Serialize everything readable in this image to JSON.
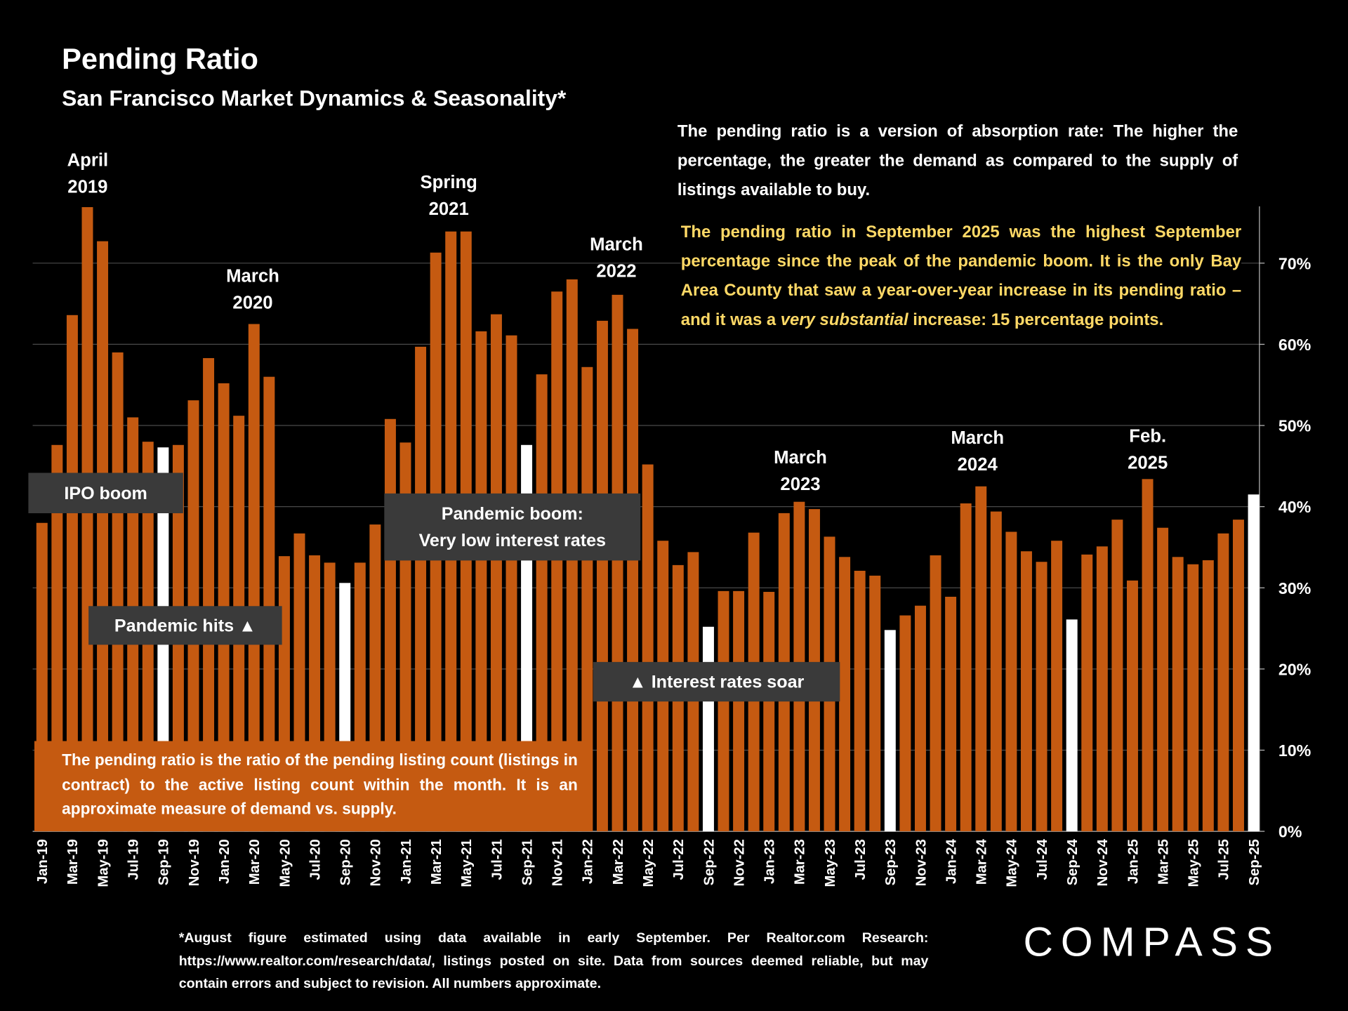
{
  "chart_data": {
    "type": "bar",
    "title": "Pending Ratio",
    "subtitle": "San Francisco Market Dynamics & Seasonality*",
    "categories": [
      "Jan-19",
      null,
      "Mar-19",
      null,
      "May-19",
      null,
      "Jul-19",
      null,
      "Sep-19",
      null,
      "Nov-19",
      null,
      "Jan-20",
      null,
      "Mar-20",
      null,
      "May-20",
      null,
      "Jul-20",
      null,
      "Sep-20",
      null,
      "Nov-20",
      null,
      "Jan-21",
      null,
      "Mar-21",
      null,
      "May-21",
      null,
      "Jul-21",
      null,
      "Sep-21",
      null,
      "Nov-21",
      null,
      "Jan-22",
      null,
      "Mar-22",
      null,
      "May-22",
      null,
      "Jul-22",
      null,
      "Sep-22",
      null,
      "Nov-22",
      null,
      "Jan-23",
      null,
      "Mar-23",
      null,
      "May-23",
      null,
      "Jul-23",
      null,
      "Sep-23",
      null,
      "Nov-23",
      null,
      "Jan-24",
      null,
      "Mar-24",
      null,
      "May-24",
      null,
      "Jul-24",
      null,
      "Sep-24",
      null,
      "Nov-24",
      null,
      "Jan-25",
      null,
      "Mar-25",
      null,
      "May-25",
      null,
      "Jul-25",
      null,
      "Sep-25"
    ],
    "values": [
      38.0,
      47.6,
      63.6,
      76.9,
      72.7,
      59.0,
      51.0,
      48.0,
      47.3,
      47.6,
      53.1,
      58.3,
      55.2,
      51.2,
      62.5,
      56.0,
      33.9,
      36.7,
      34.0,
      33.1,
      30.6,
      33.1,
      37.8,
      50.8,
      47.9,
      59.7,
      71.3,
      73.9,
      73.9,
      61.6,
      63.7,
      61.1,
      47.6,
      56.3,
      66.5,
      68.0,
      57.2,
      62.9,
      66.1,
      61.9,
      45.2,
      35.8,
      32.8,
      34.4,
      25.2,
      29.6,
      29.6,
      36.8,
      29.5,
      39.2,
      40.6,
      39.7,
      36.3,
      33.8,
      32.1,
      31.5,
      24.8,
      26.6,
      27.8,
      34.0,
      28.9,
      40.4,
      42.5,
      39.4,
      36.9,
      34.5,
      33.2,
      35.8,
      26.1,
      34.1,
      35.1,
      38.4,
      30.9,
      43.4,
      37.4,
      33.8,
      32.9,
      33.4,
      36.7,
      38.4,
      41.5
    ],
    "colors": [
      "#c55a11",
      "#c55a11",
      "#c55a11",
      "#c55a11",
      "#c55a11",
      "#c55a11",
      "#c55a11",
      "#c55a11",
      "#ffffff",
      "#c55a11",
      "#c55a11",
      "#c55a11",
      "#c55a11",
      "#c55a11",
      "#c55a11",
      "#c55a11",
      "#c55a11",
      "#c55a11",
      "#c55a11",
      "#c55a11",
      "#ffffff",
      "#c55a11",
      "#c55a11",
      "#c55a11",
      "#c55a11",
      "#c55a11",
      "#c55a11",
      "#c55a11",
      "#c55a11",
      "#c55a11",
      "#c55a11",
      "#c55a11",
      "#ffffff",
      "#c55a11",
      "#c55a11",
      "#c55a11",
      "#c55a11",
      "#c55a11",
      "#c55a11",
      "#c55a11",
      "#c55a11",
      "#c55a11",
      "#c55a11",
      "#c55a11",
      "#ffffff",
      "#c55a11",
      "#c55a11",
      "#c55a11",
      "#c55a11",
      "#c55a11",
      "#c55a11",
      "#c55a11",
      "#c55a11",
      "#c55a11",
      "#c55a11",
      "#c55a11",
      "#ffffff",
      "#c55a11",
      "#c55a11",
      "#c55a11",
      "#c55a11",
      "#c55a11",
      "#c55a11",
      "#c55a11",
      "#c55a11",
      "#c55a11",
      "#c55a11",
      "#c55a11",
      "#ffffff",
      "#c55a11",
      "#c55a11",
      "#c55a11",
      "#c55a11",
      "#c55a11",
      "#c55a11",
      "#c55a11",
      "#c55a11",
      "#c55a11",
      "#c55a11",
      "#c55a11",
      "#ffffff"
    ],
    "ylim": [
      0,
      77
    ],
    "yticks": [
      {
        "value": 0,
        "label": "0%"
      },
      {
        "value": 10,
        "label": "10%"
      },
      {
        "value": 20,
        "label": "20%"
      },
      {
        "value": 30,
        "label": "30%"
      },
      {
        "value": 40,
        "label": "40%"
      },
      {
        "value": 50,
        "label": "50%"
      },
      {
        "value": 60,
        "label": "60%"
      },
      {
        "value": 70,
        "label": "70%"
      }
    ],
    "grid": true,
    "y_axis_side": "right",
    "peak_labels": [
      [
        "April",
        "2019"
      ],
      [
        "March",
        "2020"
      ],
      [
        "Spring",
        "2021"
      ],
      [
        "March",
        "2022"
      ],
      [
        "March",
        "2023"
      ],
      [
        "March",
        "2024"
      ],
      [
        "Feb.",
        "2025"
      ]
    ],
    "event_boxes": [
      [
        "IPO boom"
      ],
      [
        "Pandemic hits ▲"
      ],
      [
        "Pandemic boom:",
        "Very low interest rates"
      ],
      [
        "▲ Interest rates soar"
      ]
    ],
    "note_top": "The pending ratio is a version of absorption rate:  The higher the percentage, the greater the demand as compared to the supply of listings available to buy.",
    "note_highlight": [
      "The pending ratio in September 2025 was the highest September percentage since the peak of the pandemic boom. It is the only Bay Area County that saw a year-over-year increase in its pending ratio – and it was a ",
      "very substantial",
      " increase:  15 percentage points."
    ],
    "definition": "The pending ratio is the ratio of the pending listing count (listings in contract) to the active listing count within the month. It is an approximate measure of demand vs. supply.",
    "footnote": "*August figure estimated using data available in early September. Per Realtor.com Research: https://www.realtor.com/research/data/, listings posted on site. Data from sources deemed reliable, but may contain errors and subject to revision. All numbers approximate.",
    "logo": "COMPASS"
  }
}
